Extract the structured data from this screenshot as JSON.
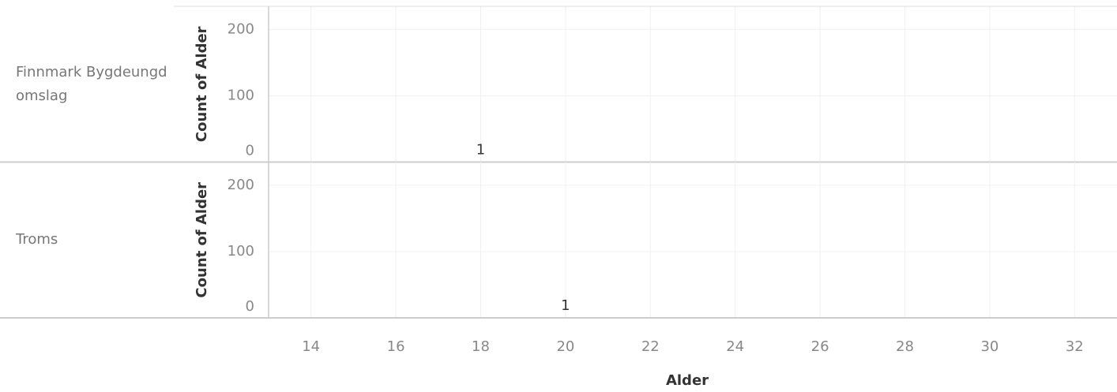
{
  "chart_data": {
    "type": "bar",
    "x_label": "Alder",
    "y_label": "Count of Alder",
    "xlim": [
      13,
      33
    ],
    "xticks": [
      14,
      16,
      18,
      20,
      22,
      24,
      26,
      28,
      30,
      32
    ],
    "ylim": [
      0,
      235
    ],
    "yticks": [
      0,
      100,
      200
    ],
    "grid": true,
    "color": "#4e79a7",
    "panels": [
      {
        "name": "Finnmark Bygdeungdomslag",
        "x": [
          18
        ],
        "values": [
          1
        ]
      },
      {
        "name": "Troms",
        "x": [
          20
        ],
        "values": [
          1
        ]
      }
    ]
  }
}
